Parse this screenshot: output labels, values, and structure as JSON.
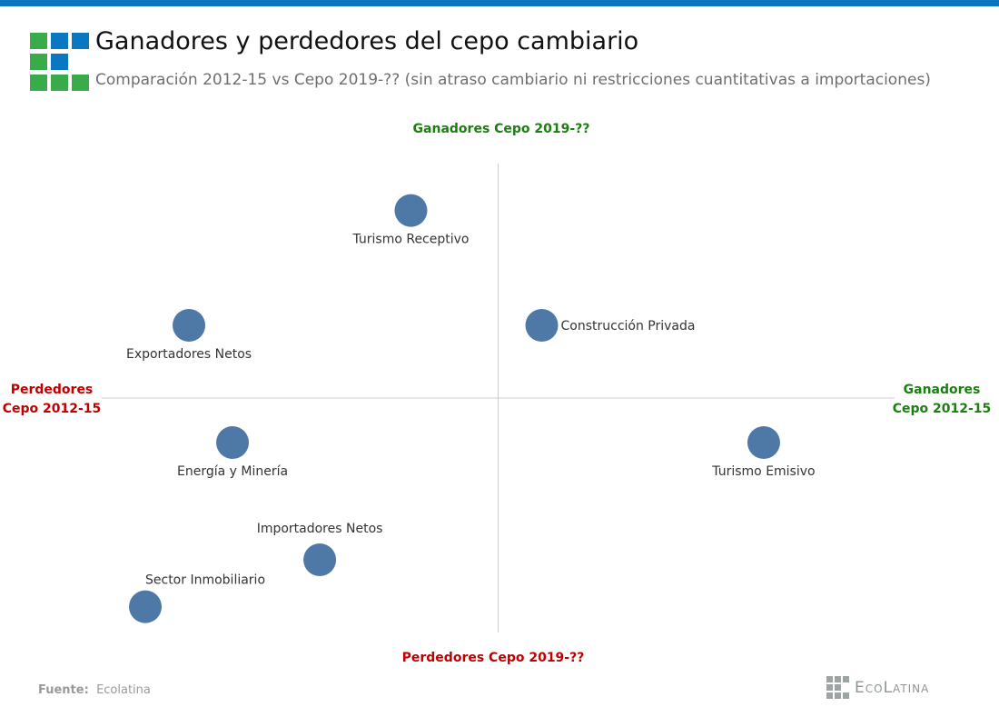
{
  "header": {
    "title": "Ganadores y perdedores del cepo cambiario",
    "subtitle": "Comparación 2012-15 vs Cepo 2019-?? (sin atraso cambiario ni restricciones cuantitativas a importaciones)"
  },
  "colors": {
    "accent": "#0b77c1",
    "green": "#3aab49",
    "win": "#1b7f10",
    "lose": "#c00000",
    "point": "#4e79a7",
    "axis": "#cccccc"
  },
  "chart_data": {
    "type": "scatter",
    "title": "Ganadores y perdedores del cepo cambiario",
    "xlabel_left": [
      "Perdedores",
      "Cepo 2012-15"
    ],
    "xlabel_right": [
      "Ganadores",
      "Cepo 2012-15"
    ],
    "ylabel_top": "Ganadores Cepo 2019-??",
    "ylabel_bottom": "Perdedores Cepo 2019-??",
    "xlim": [
      -10,
      10
    ],
    "ylim": [
      -10,
      10
    ],
    "grid": false,
    "points": [
      {
        "label": "Turismo Receptivo",
        "x": -2.2,
        "y": 8.0,
        "label_pos": "below"
      },
      {
        "label": "Exportadores Netos",
        "x": -7.8,
        "y": 3.1,
        "label_pos": "below"
      },
      {
        "label": "Construcción Privada",
        "x": 1.1,
        "y": 3.1,
        "label_pos": "right"
      },
      {
        "label": "Energía y Minería",
        "x": -6.7,
        "y": -1.9,
        "label_pos": "below"
      },
      {
        "label": "Turismo Emisivo",
        "x": 6.7,
        "y": -1.9,
        "label_pos": "below"
      },
      {
        "label": "Importadores Netos",
        "x": -4.5,
        "y": -6.9,
        "label_pos": "above"
      },
      {
        "label": "Sector Inmobiliario",
        "x": -8.9,
        "y": -8.9,
        "label_pos": "above-right"
      }
    ]
  },
  "footer": {
    "source_label": "Fuente:",
    "source_value": "Ecolatina",
    "brand": "EcoLatina"
  }
}
